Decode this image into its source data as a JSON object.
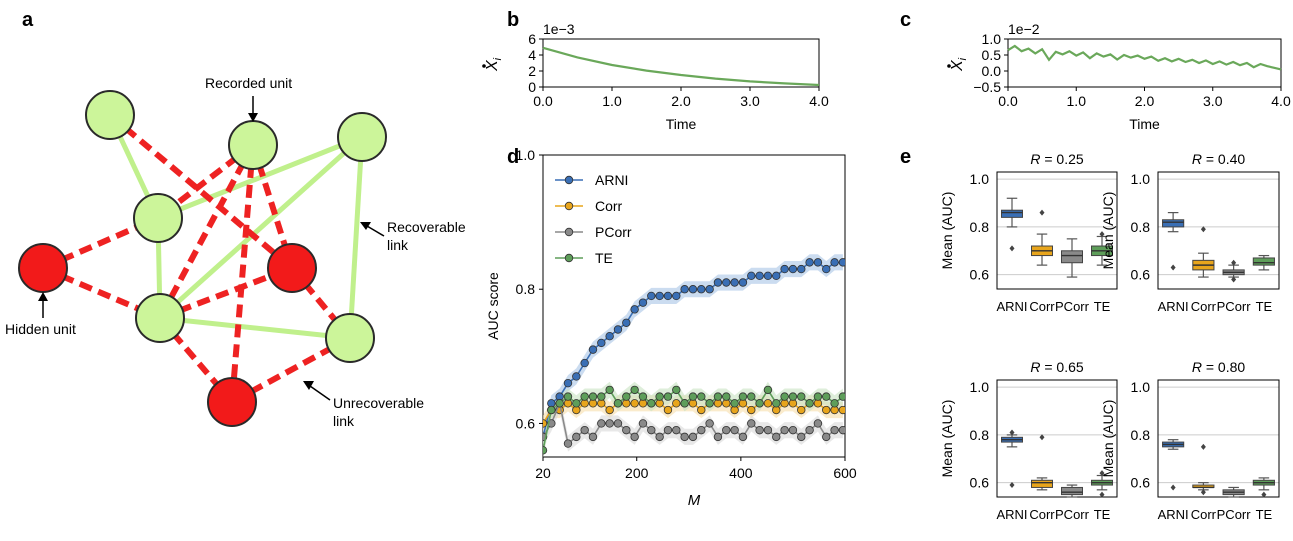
{
  "panel_labels": {
    "a": "a",
    "b": "b",
    "c": "c",
    "d": "d",
    "e": "e"
  },
  "network": {
    "recorded_unit_label": "Recorded unit",
    "recoverable_link_label": [
      "Recoverable",
      "link"
    ],
    "hidden_unit_label": "Hidden unit",
    "unrecoverable_link_label": [
      "Unrecoverable",
      "link"
    ],
    "colors": {
      "recorded": "#ccf59a",
      "hidden": "#f21a1a",
      "recoverable": "#c0f08c",
      "unrecoverable": "#ee2222"
    }
  },
  "chart_data": [
    {
      "panel": "b",
      "type": "line",
      "xlabel": "Time",
      "ylabel": "ẋ_i",
      "ylabel_text": "X",
      "ylabel_sub": "i",
      "offset_text": "1e−3",
      "xlim": [
        0,
        4
      ],
      "ylim": [
        0,
        6
      ],
      "xticks": [
        0,
        1,
        2,
        3,
        4
      ],
      "xtick_labels": [
        "0.0",
        "1.0",
        "2.0",
        "3.0",
        "4.0"
      ],
      "yticks": [
        0,
        2,
        4,
        6
      ],
      "ytick_labels": [
        "0",
        "2",
        "4",
        "6"
      ],
      "color": "#6aa85a",
      "x": [
        0,
        0.5,
        1.0,
        1.5,
        2.0,
        2.5,
        3.0,
        3.5,
        4.0
      ],
      "y": [
        4.9,
        3.7,
        2.75,
        2.05,
        1.5,
        1.05,
        0.7,
        0.45,
        0.25
      ]
    },
    {
      "panel": "c",
      "type": "line",
      "xlabel": "Time",
      "ylabel": "ẋ_i",
      "ylabel_text": "X",
      "ylabel_sub": "i",
      "offset_text": "1e−2",
      "xlim": [
        0,
        4
      ],
      "ylim": [
        -0.5,
        1.0
      ],
      "xticks": [
        0,
        1,
        2,
        3,
        4
      ],
      "xtick_labels": [
        "0.0",
        "1.0",
        "2.0",
        "3.0",
        "4.0"
      ],
      "yticks": [
        -0.5,
        0,
        0.5,
        1.0
      ],
      "ytick_labels": [
        "−0.5",
        "0.0",
        "0.5",
        "1.0"
      ],
      "color": "#6aa85a",
      "x": [
        0,
        0.1,
        0.2,
        0.3,
        0.4,
        0.5,
        0.6,
        0.7,
        0.8,
        0.9,
        1.0,
        1.1,
        1.2,
        1.3,
        1.4,
        1.5,
        1.6,
        1.7,
        1.8,
        1.9,
        2.0,
        2.1,
        2.2,
        2.3,
        2.4,
        2.5,
        2.6,
        2.7,
        2.8,
        2.9,
        3.0,
        3.1,
        3.2,
        3.3,
        3.4,
        3.5,
        3.6,
        3.7,
        3.8,
        3.9,
        4.0
      ],
      "y": [
        0.65,
        0.78,
        0.62,
        0.7,
        0.55,
        0.68,
        0.35,
        0.6,
        0.52,
        0.62,
        0.48,
        0.58,
        0.4,
        0.55,
        0.45,
        0.52,
        0.36,
        0.5,
        0.42,
        0.48,
        0.38,
        0.45,
        0.32,
        0.4,
        0.3,
        0.38,
        0.28,
        0.35,
        0.25,
        0.33,
        0.22,
        0.3,
        0.2,
        0.28,
        0.18,
        0.25,
        0.12,
        0.22,
        0.15,
        0.1,
        0.05
      ]
    },
    {
      "panel": "d",
      "type": "line",
      "xlabel": "M",
      "ylabel": "AUC score",
      "xlim": [
        20,
        600
      ],
      "ylim": [
        0.55,
        1.0
      ],
      "xticks": [
        20,
        200,
        400,
        600
      ],
      "xtick_labels": [
        "20",
        "200",
        "400",
        "600"
      ],
      "yticks": [
        0.6,
        0.8,
        1.0
      ],
      "ytick_labels": [
        "0.6",
        "0.8",
        "1.0"
      ],
      "legend_position": "top-left",
      "x": [
        20,
        36,
        52,
        68,
        84,
        100,
        116,
        132,
        148,
        164,
        180,
        196,
        212,
        228,
        244,
        260,
        276,
        292,
        308,
        324,
        340,
        356,
        372,
        388,
        404,
        420,
        436,
        452,
        468,
        484,
        500,
        516,
        532,
        548,
        564,
        580,
        596
      ],
      "series": [
        {
          "name": "ARNI",
          "color": "#3a6fb5",
          "band": "#a9c4e6",
          "values": [
            0.58,
            0.63,
            0.64,
            0.66,
            0.67,
            0.69,
            0.71,
            0.72,
            0.73,
            0.74,
            0.75,
            0.77,
            0.78,
            0.79,
            0.79,
            0.79,
            0.79,
            0.8,
            0.8,
            0.8,
            0.8,
            0.81,
            0.81,
            0.81,
            0.81,
            0.82,
            0.82,
            0.82,
            0.82,
            0.83,
            0.83,
            0.83,
            0.84,
            0.84,
            0.83,
            0.84,
            0.84
          ]
        },
        {
          "name": "Corr",
          "color": "#e8a51c",
          "band": "#f6deaa",
          "values": [
            0.6,
            0.62,
            0.62,
            0.63,
            0.62,
            0.63,
            0.63,
            0.63,
            0.62,
            0.63,
            0.63,
            0.63,
            0.63,
            0.63,
            0.63,
            0.62,
            0.63,
            0.63,
            0.63,
            0.62,
            0.63,
            0.63,
            0.63,
            0.62,
            0.63,
            0.62,
            0.63,
            0.63,
            0.62,
            0.63,
            0.63,
            0.62,
            0.63,
            0.63,
            0.62,
            0.62,
            0.62
          ]
        },
        {
          "name": "PCorr",
          "color": "#8a8a8a",
          "band": "#d9d9d9",
          "values": [
            0.58,
            0.6,
            0.63,
            0.57,
            0.58,
            0.59,
            0.58,
            0.6,
            0.6,
            0.6,
            0.59,
            0.58,
            0.6,
            0.59,
            0.58,
            0.59,
            0.59,
            0.58,
            0.58,
            0.59,
            0.6,
            0.58,
            0.59,
            0.59,
            0.58,
            0.6,
            0.59,
            0.59,
            0.58,
            0.59,
            0.59,
            0.58,
            0.59,
            0.6,
            0.58,
            0.59,
            0.59
          ]
        },
        {
          "name": "TE",
          "color": "#5e9e5a",
          "band": "#c8e3c2",
          "values": [
            0.56,
            0.62,
            0.63,
            0.64,
            0.63,
            0.64,
            0.64,
            0.64,
            0.65,
            0.63,
            0.64,
            0.65,
            0.64,
            0.63,
            0.64,
            0.64,
            0.65,
            0.63,
            0.64,
            0.64,
            0.63,
            0.64,
            0.64,
            0.63,
            0.64,
            0.64,
            0.63,
            0.65,
            0.63,
            0.64,
            0.64,
            0.64,
            0.63,
            0.64,
            0.64,
            0.63,
            0.64
          ]
        }
      ]
    },
    {
      "panel": "e",
      "type": "box",
      "ylabel": "Mean (AUC)",
      "categories": [
        "ARNI",
        "Corr",
        "PCorr",
        "TE"
      ],
      "colors": [
        "#3a6fb5",
        "#e8a51c",
        "#8a8a8a",
        "#5e9e5a"
      ],
      "subplots": [
        {
          "title_var": "R",
          "title_value": " = 0.25",
          "ylim": [
            0.54,
            1.03
          ],
          "yticks": [
            0.6,
            0.8,
            1.0
          ],
          "ytick_labels": [
            "0.6",
            "0.8",
            "1.0"
          ],
          "boxes": [
            {
              "min": 0.8,
              "q1": 0.84,
              "median": 0.86,
              "q3": 0.87,
              "max": 0.92,
              "outliers": [
                0.71
              ]
            },
            {
              "min": 0.64,
              "q1": 0.68,
              "median": 0.7,
              "q3": 0.72,
              "max": 0.77,
              "outliers": [
                0.86
              ]
            },
            {
              "min": 0.59,
              "q1": 0.65,
              "median": 0.68,
              "q3": 0.7,
              "max": 0.75,
              "outliers": []
            },
            {
              "min": 0.64,
              "q1": 0.68,
              "median": 0.7,
              "q3": 0.72,
              "max": 0.76,
              "outliers": [
                0.77
              ]
            }
          ]
        },
        {
          "title_var": "R",
          "title_value": " = 0.40",
          "ylim": [
            0.54,
            1.03
          ],
          "yticks": [
            0.6,
            0.8,
            1.0
          ],
          "ytick_labels": [
            "0.6",
            "0.8",
            "1.0"
          ],
          "boxes": [
            {
              "min": 0.78,
              "q1": 0.8,
              "median": 0.82,
              "q3": 0.83,
              "max": 0.86,
              "outliers": [
                0.63
              ]
            },
            {
              "min": 0.59,
              "q1": 0.62,
              "median": 0.64,
              "q3": 0.66,
              "max": 0.69,
              "outliers": [
                0.79
              ]
            },
            {
              "min": 0.59,
              "q1": 0.6,
              "median": 0.61,
              "q3": 0.62,
              "max": 0.64,
              "outliers": [
                0.58,
                0.65
              ]
            },
            {
              "min": 0.62,
              "q1": 0.64,
              "median": 0.65,
              "q3": 0.67,
              "max": 0.68,
              "outliers": []
            }
          ]
        },
        {
          "title_var": "R",
          "title_value": " = 0.65",
          "ylim": [
            0.54,
            1.03
          ],
          "yticks": [
            0.6,
            0.8,
            1.0
          ],
          "ytick_labels": [
            "0.6",
            "0.8",
            "1.0"
          ],
          "boxes": [
            {
              "min": 0.75,
              "q1": 0.77,
              "median": 0.78,
              "q3": 0.79,
              "max": 0.8,
              "outliers": [
                0.59,
                0.81
              ]
            },
            {
              "min": 0.57,
              "q1": 0.58,
              "median": 0.6,
              "q3": 0.61,
              "max": 0.62,
              "outliers": [
                0.79
              ]
            },
            {
              "min": 0.54,
              "q1": 0.55,
              "median": 0.56,
              "q3": 0.58,
              "max": 0.59,
              "outliers": []
            },
            {
              "min": 0.57,
              "q1": 0.59,
              "median": 0.6,
              "q3": 0.61,
              "max": 0.63,
              "outliers": [
                0.55,
                0.64
              ]
            }
          ]
        },
        {
          "title_var": "R",
          "title_value": " = 0.80",
          "ylim": [
            0.54,
            1.03
          ],
          "yticks": [
            0.6,
            0.8,
            1.0
          ],
          "ytick_labels": [
            "0.6",
            "0.8",
            "1.0"
          ],
          "boxes": [
            {
              "min": 0.74,
              "q1": 0.75,
              "median": 0.76,
              "q3": 0.77,
              "max": 0.78,
              "outliers": [
                0.58
              ]
            },
            {
              "min": 0.57,
              "q1": 0.58,
              "median": 0.58,
              "q3": 0.59,
              "max": 0.6,
              "outliers": [
                0.75,
                0.56
              ]
            },
            {
              "min": 0.54,
              "q1": 0.55,
              "median": 0.56,
              "q3": 0.57,
              "max": 0.58,
              "outliers": []
            },
            {
              "min": 0.57,
              "q1": 0.59,
              "median": 0.6,
              "q3": 0.61,
              "max": 0.62,
              "outliers": [
                0.55
              ]
            }
          ]
        }
      ]
    }
  ]
}
